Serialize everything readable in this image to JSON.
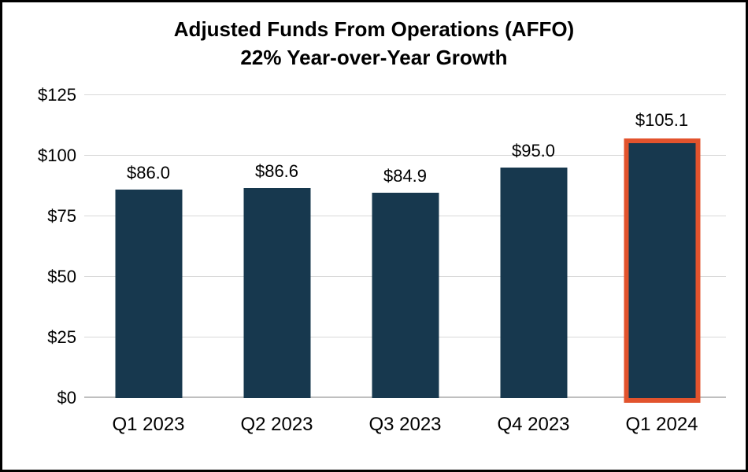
{
  "chart_data": {
    "type": "bar",
    "title_line1": "Adjusted Funds From Operations (AFFO)",
    "title_line2": "22% Year-over-Year Growth",
    "categories": [
      "Q1 2023",
      "Q2 2023",
      "Q3 2023",
      "Q4 2023",
      "Q1 2024"
    ],
    "values": [
      86.0,
      86.6,
      84.9,
      95.0,
      105.1
    ],
    "value_labels": [
      "$86.0",
      "$86.6",
      "$84.9",
      "$95.0",
      "$105.1"
    ],
    "highlighted_index": 4,
    "ylim": [
      0,
      125
    ],
    "ytick_step": 25,
    "ytick_labels": [
      "$0",
      "$25",
      "$50",
      "$75",
      "$100",
      "$125"
    ],
    "xlabel": "",
    "ylabel": "",
    "grid": "horizontal",
    "legend": "none",
    "colors": {
      "bar": "#17384e",
      "highlight_border": "#e2532d",
      "gridline": "#d9d9d9",
      "axis_line": "#bfbfbf",
      "text": "#000000",
      "frame_border": "#000000",
      "background": "#ffffff"
    }
  }
}
